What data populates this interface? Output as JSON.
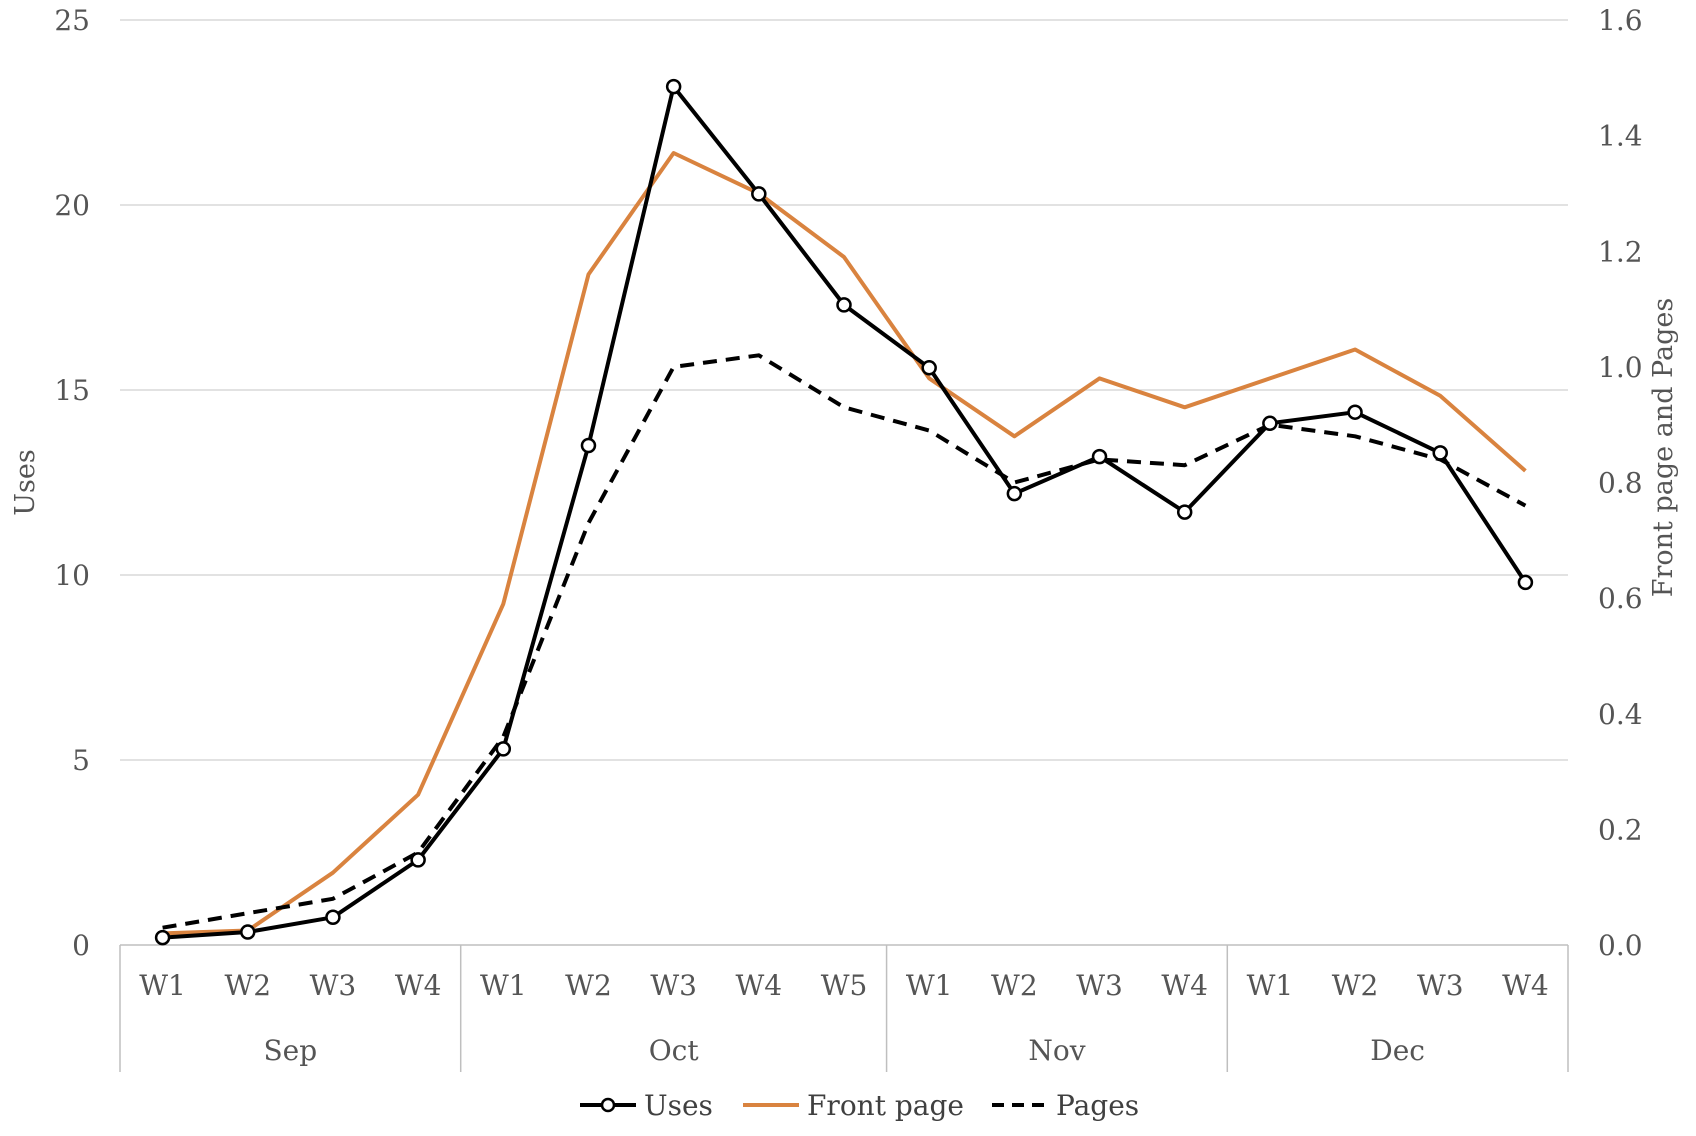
{
  "chart_data": {
    "type": "line",
    "title": "",
    "ylabel": "Uses",
    "y2label": "Front page and Pages",
    "ylim": [
      0,
      25
    ],
    "y2lim": [
      0,
      1.6
    ],
    "yticks": [
      "0",
      "5",
      "10",
      "15",
      "20",
      "25"
    ],
    "y2ticks": [
      "0.0",
      "0.2",
      "0.4",
      "0.6",
      "0.8",
      "1.0",
      "1.2",
      "1.4",
      "1.6"
    ],
    "categories": [
      "W1",
      "W2",
      "W3",
      "W4",
      "W1",
      "W2",
      "W3",
      "W4",
      "W5",
      "W1",
      "W2",
      "W3",
      "W4",
      "W1",
      "W2",
      "W3",
      "W4"
    ],
    "groups": [
      {
        "label": "Sep",
        "count": 4
      },
      {
        "label": "Oct",
        "count": 5
      },
      {
        "label": "Nov",
        "count": 4
      },
      {
        "label": "Dec",
        "count": 4
      }
    ],
    "series": [
      {
        "name": "Uses",
        "axis": "left",
        "color": "#000000",
        "style": "solid-markers",
        "values": [
          0.2,
          0.35,
          0.75,
          2.3,
          5.3,
          13.5,
          23.2,
          20.3,
          17.3,
          15.6,
          12.2,
          13.2,
          11.7,
          14.1,
          14.4,
          13.3,
          9.8
        ]
      },
      {
        "name": "Front page",
        "axis": "right",
        "color": "#d9833f",
        "style": "solid",
        "values": [
          0.02,
          0.025,
          0.125,
          0.26,
          0.59,
          1.16,
          1.37,
          1.3,
          1.19,
          0.98,
          0.88,
          0.98,
          0.93,
          0.98,
          1.03,
          0.95,
          0.82
        ]
      },
      {
        "name": "Pages",
        "axis": "right",
        "color": "#000000",
        "style": "dashed",
        "values": [
          0.03,
          0.055,
          0.08,
          0.16,
          0.36,
          0.73,
          1.0,
          1.02,
          0.93,
          0.89,
          0.8,
          0.84,
          0.83,
          0.9,
          0.88,
          0.84,
          0.76
        ]
      }
    ],
    "legend": [
      {
        "label": "Uses"
      },
      {
        "label": "Front page"
      },
      {
        "label": "Pages"
      }
    ],
    "legend_position": "bottom"
  }
}
